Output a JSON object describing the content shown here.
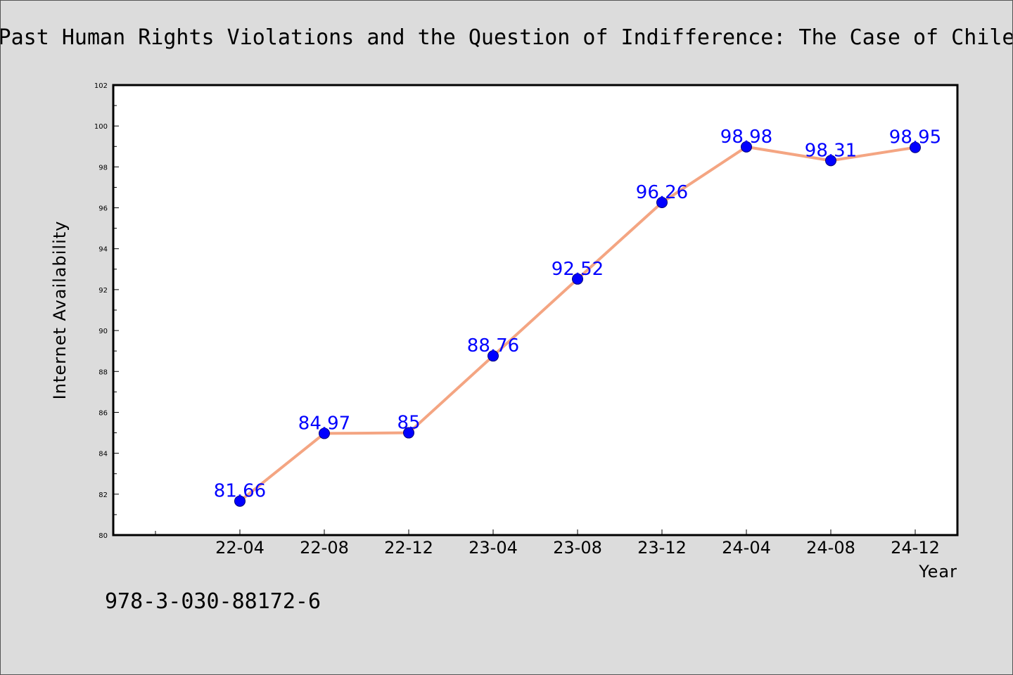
{
  "chart_data": {
    "type": "line",
    "title": "Past Human Rights Violations and the Question of Indifference: The Case of Chile",
    "xlabel": "Year",
    "ylabel": "Internet Availability",
    "categories": [
      "22-04",
      "22-08",
      "22-12",
      "23-04",
      "23-08",
      "23-12",
      "24-04",
      "24-08",
      "24-12"
    ],
    "series": [
      {
        "values": [
          81.66,
          84.97,
          85,
          88.76,
          92.52,
          96.26,
          98.98,
          98.31,
          98.95
        ],
        "data_labels": [
          "81.66",
          "84.97",
          "85",
          "88.76",
          "92.52",
          "96.26",
          "98.98",
          "98.31",
          "98.95"
        ],
        "line_color": "#f4a582",
        "marker_color": "#0000ff"
      }
    ],
    "ylim": [
      80,
      102
    ],
    "yticks": [
      "80",
      "82",
      "84",
      "86",
      "88",
      "90",
      "92",
      "94",
      "96",
      "98",
      "100",
      "102"
    ],
    "grid": false,
    "legend": "none"
  },
  "footer": {
    "isbn": "978-3-030-88172-6"
  },
  "colors": {
    "background": "#dcdcdc",
    "plot_area": "#ffffff",
    "line": "#f4a582",
    "marker": "#0000ff",
    "data_label": "#0000ff"
  }
}
